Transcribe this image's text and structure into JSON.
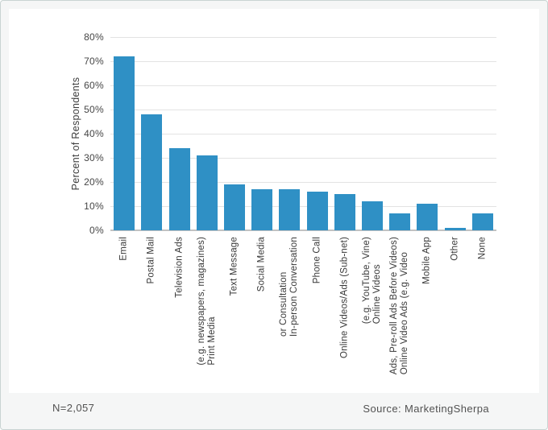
{
  "chart_data": {
    "type": "bar",
    "title": "",
    "xlabel": "",
    "ylabel": "Percent of Respondents",
    "ylim": [
      0,
      80
    ],
    "ytick_labels": [
      "80%",
      "70%",
      "60%",
      "50%",
      "40%",
      "30%",
      "20%",
      "10%",
      "0%"
    ],
    "grid": "horizontal gridlines every 10%",
    "legend_position": "none",
    "bar_color": "#2F90C5",
    "categories": [
      "Email",
      "Postal Mail",
      "Television Ads",
      "Print Media\n(e.g. newspapers, magazines)",
      "Text Message",
      "Social Media",
      "In-person Conversation\nor Consultation",
      "Phone Call",
      "Online Videos/Ads (Sub-net)",
      "Online Videos\n(e.g. YouTube, Vine)",
      "Online Video Ads (e.g. Video\nAds, Pre-roll Ads Before Videos)",
      "Mobile App",
      "Other",
      "None"
    ],
    "values": [
      72,
      48,
      34,
      31,
      19,
      17,
      17,
      16,
      15,
      12,
      7,
      11,
      1,
      7
    ]
  },
  "footer": {
    "sample_size": "N=2,057",
    "source": "Source: MarketingSherpa"
  }
}
